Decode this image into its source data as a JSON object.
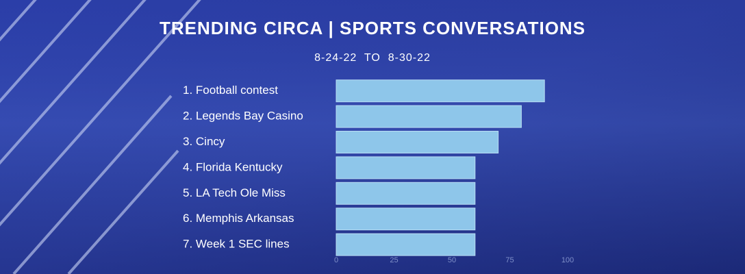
{
  "chart_data": {
    "type": "bar",
    "orientation": "horizontal",
    "title": "TRENDING CIRCA | SPORTS CONVERSATIONS",
    "subtitle": "8-24-22  TO  8-30-22",
    "categories": [
      "1. Football contest",
      "2. Legends Bay Casino",
      "3. Cincy",
      "4. Florida Kentucky",
      "5. LA Tech Ole Miss",
      "6. Memphis Arkansas",
      "7. Week 1 SEC lines"
    ],
    "values": [
      90,
      80,
      70,
      60,
      60,
      60,
      60
    ],
    "color": "#8ec6ea",
    "xlim": [
      0,
      100
    ],
    "xticks": [
      0,
      25,
      50,
      75,
      100
    ],
    "grid": false
  }
}
